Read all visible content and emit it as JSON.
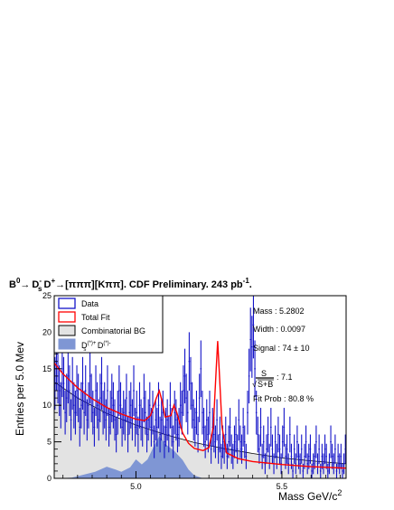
{
  "chart_data": {
    "type": "histogram",
    "title_parts": {
      "b0": "B",
      "b0_sup": "0",
      "arrow1": "→",
      "ds": "D",
      "ds_sub": "s",
      "ds_sup": "-",
      "dplus": "D",
      "dplus_sup": "+",
      "arrow2": "→",
      "tail": "[πππ][Kππ]. CDF Preliminary. 243 pb",
      "tail_sup": "-1",
      "end": "."
    },
    "xlabel": "Mass GeV/c",
    "xlabel_sup": "2",
    "ylabel": "Entries per 5.0 Mev",
    "xlim": [
      4.72,
      5.72
    ],
    "ylim": [
      0,
      25
    ],
    "x_ticks": [
      {
        "value": 5.0,
        "label": "5.0"
      },
      {
        "value": 5.5,
        "label": "5.5"
      }
    ],
    "y_ticks": [
      {
        "value": 0,
        "label": "0"
      },
      {
        "value": 5,
        "label": "5"
      },
      {
        "value": 10,
        "label": "10"
      },
      {
        "value": 15,
        "label": "15"
      },
      {
        "value": 20,
        "label": "20"
      },
      {
        "value": 25,
        "label": "25"
      }
    ],
    "bin_width": 0.005,
    "legend": {
      "placement": "top-left",
      "entries": [
        {
          "key": "data",
          "label": "Data"
        },
        {
          "key": "fit",
          "label": "Total Fit"
        },
        {
          "key": "comb",
          "label": "Combinatorial BG"
        },
        {
          "key": "dd",
          "label_main": "D",
          "label_sub": "s",
          "label_sup": "(*)+",
          "label_mid": " D",
          "label_sup2": "(*)-"
        }
      ]
    },
    "stats": {
      "mass": "Mass : 5.2802",
      "width": "Width : 0.0097",
      "signal": "Signal :   74 ± 10",
      "sig_num": "S",
      "sig_den": "S+B",
      "sig_root": "√",
      "sig_val": ": 7.1",
      "fitprob": "Fit Prob : 80.8 %"
    },
    "colors": {
      "data": "#1414c8",
      "fit": "#ff0000",
      "comb_fill": "#e3e3e3",
      "comb_line": "#000000",
      "dd_fill": "#7f96d4"
    },
    "data_x_start": 4.7225,
    "data_values": [
      13,
      16,
      14,
      12,
      10,
      15,
      13,
      9,
      11,
      14,
      12,
      8,
      13,
      10,
      9,
      12,
      11,
      7,
      10,
      13,
      9,
      12,
      8,
      10,
      14,
      11,
      9,
      7,
      12,
      10,
      8,
      11,
      13,
      9,
      10,
      8,
      12,
      7,
      9,
      11,
      10,
      8,
      6,
      9,
      12,
      10,
      7,
      9,
      8,
      11,
      6,
      9,
      10,
      8,
      12,
      7,
      9,
      6,
      10,
      8,
      7,
      11,
      9,
      6,
      8,
      10,
      7,
      9,
      5,
      8,
      7,
      10,
      6,
      8,
      9,
      5,
      7,
      8,
      6,
      10,
      7,
      5,
      9,
      8,
      6,
      7,
      10,
      9,
      12,
      14,
      11,
      9,
      16,
      13,
      10,
      8,
      7,
      9,
      6,
      11,
      15,
      9,
      7,
      5,
      8,
      6,
      9,
      4,
      7,
      6,
      5,
      8,
      4,
      6,
      3,
      5,
      4,
      6,
      3,
      5,
      7,
      4,
      3,
      5,
      6,
      4,
      8,
      5,
      4,
      7,
      5,
      3,
      9,
      14,
      19,
      18,
      21,
      15,
      9,
      6,
      4,
      7,
      3,
      5,
      2,
      4,
      6,
      3,
      7,
      4,
      2,
      5,
      3,
      6,
      4,
      2,
      5,
      7,
      3,
      4,
      2,
      6,
      3,
      1,
      4,
      2,
      5,
      3,
      2,
      4,
      1,
      3,
      5,
      2,
      3,
      4,
      1,
      2,
      3,
      5,
      2,
      4,
      1,
      3,
      2,
      4,
      3,
      1,
      2,
      5,
      3,
      2,
      4,
      1,
      3,
      2,
      3,
      1,
      2,
      4
    ],
    "fit_curve": [
      [
        4.72,
        15.8
      ],
      [
        4.75,
        14.3
      ],
      [
        4.8,
        12.4
      ],
      [
        4.85,
        10.9
      ],
      [
        4.9,
        9.7
      ],
      [
        4.95,
        8.8
      ],
      [
        5.0,
        8.1
      ],
      [
        5.03,
        7.9
      ],
      [
        5.05,
        8.6
      ],
      [
        5.07,
        11.0
      ],
      [
        5.08,
        12.0
      ],
      [
        5.09,
        10.5
      ],
      [
        5.1,
        8.4
      ],
      [
        5.12,
        8.6
      ],
      [
        5.13,
        10.0
      ],
      [
        5.14,
        9.0
      ],
      [
        5.16,
        6.2
      ],
      [
        5.18,
        4.8
      ],
      [
        5.2,
        4.1
      ],
      [
        5.23,
        3.8
      ],
      [
        5.25,
        4.2
      ],
      [
        5.265,
        7.0
      ],
      [
        5.275,
        15.0
      ],
      [
        5.28,
        18.8
      ],
      [
        5.285,
        15.0
      ],
      [
        5.295,
        7.0
      ],
      [
        5.31,
        3.5
      ],
      [
        5.35,
        2.7
      ],
      [
        5.4,
        2.3
      ],
      [
        5.5,
        1.9
      ],
      [
        5.6,
        1.6
      ],
      [
        5.72,
        1.4
      ]
    ],
    "comb_curve": [
      [
        4.72,
        13.2
      ],
      [
        4.8,
        11.0
      ],
      [
        4.9,
        8.9
      ],
      [
        5.0,
        7.3
      ],
      [
        5.1,
        6.0
      ],
      [
        5.2,
        4.9
      ],
      [
        5.3,
        4.1
      ],
      [
        5.4,
        3.4
      ],
      [
        5.5,
        2.8
      ],
      [
        5.6,
        2.4
      ],
      [
        5.72,
        2.0
      ]
    ],
    "dd_curve": [
      [
        4.72,
        0
      ],
      [
        4.78,
        0.1
      ],
      [
        4.82,
        0.5
      ],
      [
        4.86,
        0.9
      ],
      [
        4.9,
        1.6
      ],
      [
        4.93,
        1.2
      ],
      [
        4.95,
        0.9
      ],
      [
        4.98,
        1.5
      ],
      [
        5.0,
        2.6
      ],
      [
        5.02,
        1.9
      ],
      [
        5.04,
        2.6
      ],
      [
        5.06,
        4.3
      ],
      [
        5.08,
        5.8
      ],
      [
        5.1,
        4.7
      ],
      [
        5.13,
        3.8
      ],
      [
        5.16,
        2.5
      ],
      [
        5.18,
        1.2
      ],
      [
        5.2,
        0.4
      ],
      [
        5.23,
        0
      ]
    ]
  }
}
